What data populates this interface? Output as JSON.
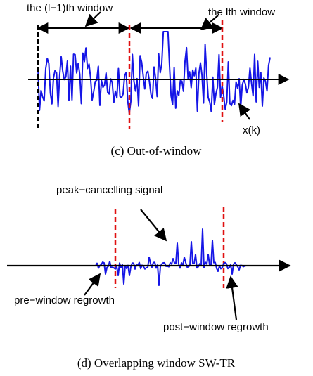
{
  "panel_c": {
    "label_left_window": "the (l−1)th window",
    "label_right_window": "the lth window",
    "label_signal": "x(k)",
    "caption": "(c) Out-of-window"
  },
  "panel_d": {
    "label_peak": "peak−cancelling signal",
    "label_pre": "pre−window regrowth",
    "label_post": "post−window regrowth",
    "caption": "(d) Overlapping window SW-TR"
  },
  "colors": {
    "signal": "#1515e6",
    "window_boundary": "#e01010",
    "axis": "#000000"
  }
}
